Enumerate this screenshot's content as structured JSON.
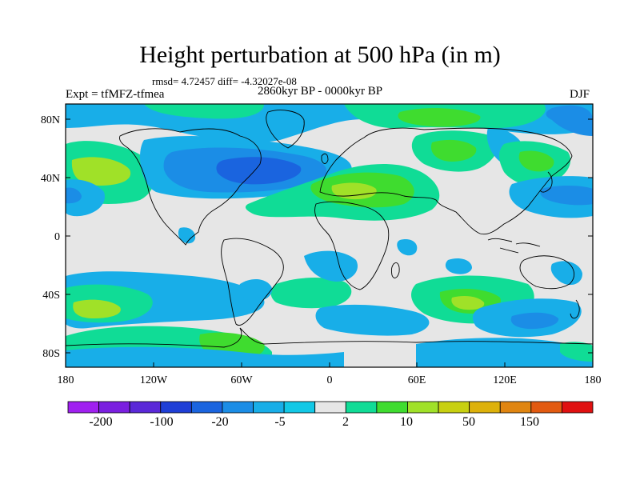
{
  "title": "Height perturbation at 500 hPa (in m)",
  "stats": "rmsd= 4.72457 diff= -4.32027e-08",
  "experiment": "Expt = tfMFZ-tfmea",
  "period": "2860kyr BP - 0000kyr BP",
  "season": "DJF",
  "lat_labels": [
    "80N",
    "40N",
    "0",
    "40S",
    "80S"
  ],
  "lon_labels": [
    "180",
    "120W",
    "60W",
    "0",
    "60E",
    "120E",
    "180"
  ],
  "colorbar": {
    "colors": [
      "#a020f0",
      "#7a1fe0",
      "#5a28d8",
      "#1e3ed6",
      "#1a64df",
      "#1b8de6",
      "#18aee8",
      "#12c8e6",
      "#e6e6e6",
      "#10dc96",
      "#3fdc2f",
      "#a0e128",
      "#c8d010",
      "#ddb10a",
      "#e08510",
      "#e25a10",
      "#e01010"
    ],
    "labels": [
      "-200",
      "-100",
      "-20",
      "-5",
      "2",
      "10",
      "50",
      "150"
    ]
  },
  "colors": {
    "background": "#e6e6e6",
    "coast": "#000000"
  }
}
